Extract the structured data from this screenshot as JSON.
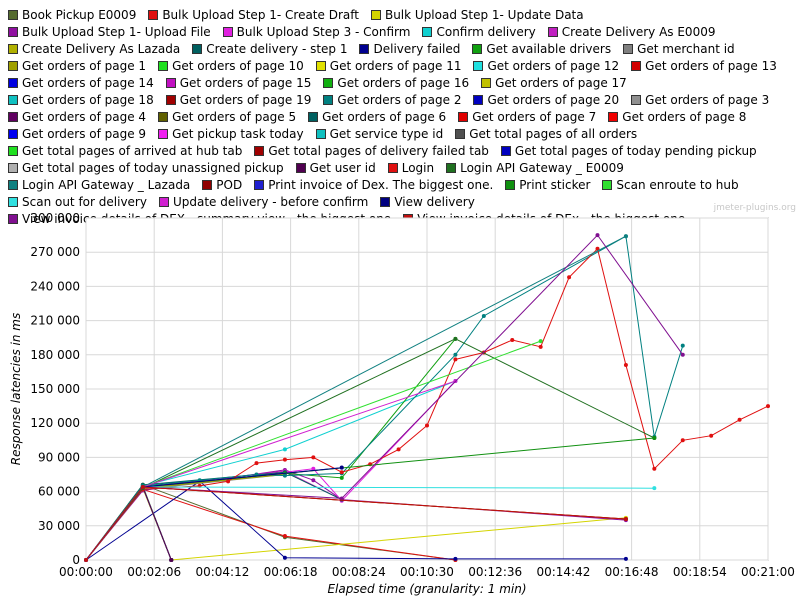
{
  "watermark": "jmeter-plugins.org",
  "chart_data": {
    "type": "line",
    "xlabel": "Elapsed time (granularity: 1 min)",
    "ylabel": "Response latencies in ms",
    "x_ticks": [
      "00:00:00",
      "00:02:06",
      "00:04:12",
      "00:06:18",
      "00:08:24",
      "00:10:30",
      "00:12:36",
      "00:14:42",
      "00:16:48",
      "00:18:54",
      "00:21:00"
    ],
    "y_ticks": [
      "0",
      "30 000",
      "60 000",
      "90 000",
      "120 000",
      "150 000",
      "180 000",
      "210 000",
      "240 000",
      "270 000",
      "300 000"
    ],
    "xlim_seconds": [
      0,
      1260
    ],
    "ylim": [
      0,
      300000
    ],
    "grid": true,
    "legend_position": "top",
    "series": [
      {
        "name": "Book Pickup E0009",
        "color": "#556b2f",
        "points": [
          [
            0,
            0
          ],
          [
            120,
            66000
          ],
          [
            420,
            20000
          ],
          [
            780,
            0
          ]
        ]
      },
      {
        "name": "Bulk Upload Step 1- Create Draft",
        "color": "#e01010",
        "points": [
          [
            0,
            0
          ],
          [
            120,
            62000
          ],
          [
            420,
            21000
          ],
          [
            780,
            0
          ]
        ]
      },
      {
        "name": "Bulk Upload Step 1- Update Data",
        "color": "#d4d400",
        "points": [
          [
            0,
            0
          ],
          [
            120,
            63000
          ],
          [
            180,
            0
          ],
          [
            1140,
            37000
          ]
        ]
      },
      {
        "name": "Bulk Upload Step 1- Upload File",
        "color": "#9010a0",
        "points": [
          [
            0,
            0
          ],
          [
            120,
            61000
          ],
          [
            420,
            79000
          ],
          [
            480,
            70000
          ],
          [
            540,
            53000
          ],
          [
            1140,
            35000
          ]
        ]
      },
      {
        "name": "Bulk Upload Step 3 - Confirm",
        "color": "#e020e0",
        "points": [
          [
            0,
            0
          ],
          [
            120,
            63000
          ],
          [
            300,
            71000
          ],
          [
            480,
            80000
          ],
          [
            540,
            52000
          ],
          [
            780,
            157000
          ]
        ]
      },
      {
        "name": "Confirm delivery",
        "color": "#10d0d0",
        "points": [
          [
            0,
            0
          ],
          [
            120,
            65000
          ],
          [
            420,
            97000
          ],
          [
            780,
            157000
          ]
        ]
      },
      {
        "name": "Create Delivery As E0009",
        "color": "#c020c0",
        "points": [
          [
            0,
            0
          ],
          [
            120,
            64000
          ],
          [
            420,
            78000
          ],
          [
            540,
            53000
          ]
        ]
      },
      {
        "name": "Create Delivery As Lazada",
        "color": "#b0b000",
        "points": [
          [
            0,
            0
          ],
          [
            120,
            64000
          ],
          [
            1140,
            36000
          ]
        ]
      },
      {
        "name": "Create delivery - step 1",
        "color": "#006060",
        "points": [
          [
            0,
            0
          ],
          [
            120,
            66000
          ],
          [
            420,
            77000
          ],
          [
            540,
            53000
          ]
        ]
      },
      {
        "name": "Delivery failed",
        "color": "#000090",
        "points": [
          [
            0,
            0
          ],
          [
            240,
            69000
          ],
          [
            420,
            2000
          ],
          [
            780,
            1000
          ],
          [
            1140,
            1000
          ]
        ]
      },
      {
        "name": "Get available drivers",
        "color": "#10a010",
        "points": [
          [
            0,
            0
          ],
          [
            120,
            63000
          ],
          [
            420,
            76000
          ],
          [
            540,
            72000
          ],
          [
            780,
            194000
          ]
        ]
      },
      {
        "name": "Get merchant id",
        "color": "#808080",
        "points": [
          [
            0,
            0
          ],
          [
            120,
            62000
          ],
          [
            420,
            75000
          ]
        ]
      },
      {
        "name": "Get orders of page 1",
        "color": "#a0a000",
        "points": [
          [
            0,
            0
          ],
          [
            120,
            63000
          ],
          [
            420,
            75000
          ]
        ]
      },
      {
        "name": "Get orders of page 10",
        "color": "#20e020",
        "points": [
          [
            0,
            0
          ],
          [
            120,
            65000
          ],
          [
            180,
            0
          ]
        ]
      },
      {
        "name": "Get orders of page 11",
        "color": "#e0e000",
        "points": [
          [
            0,
            0
          ],
          [
            120,
            63000
          ],
          [
            180,
            0
          ]
        ]
      },
      {
        "name": "Get orders of page 12",
        "color": "#20e0e0",
        "points": [
          [
            0,
            0
          ],
          [
            120,
            64000
          ],
          [
            180,
            0
          ]
        ]
      },
      {
        "name": "Get orders of page 13",
        "color": "#d00000",
        "points": [
          [
            0,
            0
          ],
          [
            120,
            64000
          ],
          [
            180,
            0
          ]
        ]
      },
      {
        "name": "Get orders of page 14",
        "color": "#0000e0",
        "points": [
          [
            0,
            0
          ],
          [
            120,
            64000
          ],
          [
            180,
            0
          ]
        ]
      },
      {
        "name": "Get orders of page 15",
        "color": "#c010c0",
        "points": [
          [
            0,
            0
          ],
          [
            120,
            64000
          ],
          [
            180,
            0
          ]
        ]
      },
      {
        "name": "Get orders of page 16",
        "color": "#10b010",
        "points": [
          [
            0,
            0
          ],
          [
            120,
            64000
          ],
          [
            180,
            0
          ]
        ]
      },
      {
        "name": "Get orders of page 17",
        "color": "#c0c000",
        "points": [
          [
            0,
            0
          ],
          [
            120,
            64000
          ],
          [
            180,
            0
          ]
        ]
      },
      {
        "name": "Get orders of page 18",
        "color": "#10c0c0",
        "points": [
          [
            0,
            0
          ],
          [
            120,
            64000
          ],
          [
            180,
            0
          ]
        ]
      },
      {
        "name": "Get orders of page 19",
        "color": "#a00000",
        "points": [
          [
            0,
            0
          ],
          [
            120,
            64000
          ],
          [
            180,
            0
          ]
        ]
      },
      {
        "name": "Get orders of page 2",
        "color": "#008080",
        "points": [
          [
            0,
            0
          ],
          [
            120,
            65000
          ],
          [
            240,
            70000
          ],
          [
            360,
            75000
          ],
          [
            420,
            74000
          ],
          [
            540,
            76000
          ],
          [
            780,
            180000
          ],
          [
            840,
            214000
          ],
          [
            1140,
            284000
          ],
          [
            1200,
            108000
          ],
          [
            1260,
            188000
          ]
        ]
      },
      {
        "name": "Get orders of page 20",
        "color": "#0000c0",
        "points": [
          [
            0,
            0
          ],
          [
            120,
            64000
          ],
          [
            180,
            0
          ]
        ]
      },
      {
        "name": "Get orders of page 3",
        "color": "#909090",
        "points": [
          [
            0,
            0
          ],
          [
            120,
            64000
          ],
          [
            180,
            0
          ]
        ]
      },
      {
        "name": "Get orders of page 4",
        "color": "#600060",
        "points": [
          [
            0,
            0
          ],
          [
            120,
            64000
          ],
          [
            180,
            0
          ]
        ]
      },
      {
        "name": "Get orders of page 5",
        "color": "#606000",
        "points": [
          [
            0,
            0
          ],
          [
            120,
            64000
          ],
          [
            180,
            0
          ]
        ]
      },
      {
        "name": "Get orders of page 6",
        "color": "#006060",
        "points": [
          [
            0,
            0
          ],
          [
            120,
            64000
          ],
          [
            180,
            0
          ]
        ]
      },
      {
        "name": "Get orders of page 7",
        "color": "#e00000",
        "points": [
          [
            0,
            0
          ],
          [
            120,
            64000
          ],
          [
            180,
            0
          ]
        ]
      },
      {
        "name": "Get orders of page 8",
        "color": "#f00000",
        "points": [
          [
            0,
            0
          ],
          [
            120,
            64000
          ],
          [
            180,
            0
          ]
        ]
      },
      {
        "name": "Get orders of page 9",
        "color": "#0000f0",
        "points": [
          [
            0,
            0
          ],
          [
            120,
            64000
          ],
          [
            180,
            0
          ]
        ]
      },
      {
        "name": "Get pickup task today",
        "color": "#f020f0",
        "points": [
          [
            0,
            0
          ],
          [
            120,
            64000
          ],
          [
            180,
            0
          ]
        ]
      },
      {
        "name": "Get service type id",
        "color": "#10c0c0",
        "points": [
          [
            0,
            0
          ],
          [
            120,
            64000
          ],
          [
            180,
            0
          ]
        ]
      },
      {
        "name": "Get total pages of all orders",
        "color": "#505050",
        "points": [
          [
            0,
            0
          ],
          [
            120,
            64000
          ],
          [
            180,
            0
          ]
        ]
      },
      {
        "name": "Get total pages of arrived at hub tab",
        "color": "#20e020",
        "points": [
          [
            0,
            0
          ],
          [
            120,
            64000
          ],
          [
            180,
            0
          ]
        ]
      },
      {
        "name": "Get total pages of delivery failed tab",
        "color": "#a00000",
        "points": [
          [
            0,
            0
          ],
          [
            120,
            64000
          ],
          [
            180,
            0
          ]
        ]
      },
      {
        "name": "Get total pages of today pending pickup",
        "color": "#0000c0",
        "points": [
          [
            0,
            0
          ],
          [
            120,
            64000
          ],
          [
            180,
            0
          ]
        ]
      },
      {
        "name": "Get total pages of today unassigned pickup",
        "color": "#b0b0b0",
        "points": [
          [
            0,
            0
          ],
          [
            120,
            64000
          ],
          [
            180,
            0
          ]
        ]
      },
      {
        "name": "Get user id",
        "color": "#500050",
        "points": [
          [
            0,
            0
          ],
          [
            120,
            64000
          ],
          [
            180,
            0
          ]
        ]
      },
      {
        "name": "Login",
        "color": "#e01010",
        "points": [
          [
            0,
            0
          ],
          [
            120,
            62000
          ],
          [
            240,
            65000
          ],
          [
            300,
            69000
          ],
          [
            360,
            85000
          ],
          [
            420,
            88000
          ],
          [
            480,
            90000
          ],
          [
            540,
            77000
          ],
          [
            600,
            84000
          ],
          [
            660,
            97000
          ],
          [
            720,
            118000
          ],
          [
            780,
            176000
          ],
          [
            840,
            182000
          ],
          [
            900,
            193000
          ],
          [
            960,
            187000
          ],
          [
            1020,
            248000
          ],
          [
            1080,
            273000
          ],
          [
            1140,
            171000
          ],
          [
            1200,
            80000
          ],
          [
            1260,
            105000
          ],
          [
            1320,
            109000
          ],
          [
            1380,
            123000
          ],
          [
            1440,
            135000
          ]
        ]
      },
      {
        "name": "Login API Gateway _ E0009",
        "color": "#207020",
        "points": [
          [
            0,
            0
          ],
          [
            120,
            63000
          ],
          [
            780,
            194000
          ],
          [
            1200,
            107000
          ]
        ]
      },
      {
        "name": "Login API Gateway _ Lazada",
        "color": "#108080",
        "points": [
          [
            0,
            0
          ],
          [
            120,
            64000
          ],
          [
            1140,
            284000
          ]
        ]
      },
      {
        "name": "POD",
        "color": "#900000",
        "points": [
          [
            0,
            0
          ],
          [
            120,
            64000
          ],
          [
            1140,
            36000
          ]
        ]
      },
      {
        "name": "Print invoice of Dex. The biggest one.",
        "color": "#2020d0",
        "points": [
          [
            0,
            0
          ],
          [
            120,
            64000
          ],
          [
            540,
            81000
          ]
        ]
      },
      {
        "name": "Print sticker",
        "color": "#109010",
        "points": [
          [
            0,
            0
          ],
          [
            120,
            64000
          ],
          [
            1200,
            107000
          ]
        ]
      },
      {
        "name": "Scan enroute to hub",
        "color": "#30e030",
        "points": [
          [
            0,
            0
          ],
          [
            120,
            64000
          ],
          [
            960,
            192000
          ]
        ]
      },
      {
        "name": "Scan out for delivery",
        "color": "#30e0e0",
        "points": [
          [
            0,
            0
          ],
          [
            120,
            64000
          ],
          [
            1200,
            63000
          ]
        ]
      },
      {
        "name": "Update delivery - before confirm",
        "color": "#d020d0",
        "points": [
          [
            0,
            0
          ],
          [
            120,
            64000
          ],
          [
            780,
            157000
          ]
        ]
      },
      {
        "name": "View delivery",
        "color": "#000080",
        "points": [
          [
            0,
            0
          ],
          [
            120,
            64000
          ],
          [
            540,
            81000
          ]
        ]
      },
      {
        "name": "View invoice details of DEX - summary view - the biggest one",
        "color": "#801090",
        "points": [
          [
            0,
            0
          ],
          [
            120,
            64000
          ],
          [
            540,
            54000
          ],
          [
            1080,
            285000
          ],
          [
            1260,
            180000
          ]
        ]
      },
      {
        "name": "View invoice details of DEx - the biggest one",
        "color": "#c01010",
        "points": [
          [
            0,
            0
          ],
          [
            120,
            64000
          ],
          [
            1140,
            36000
          ]
        ]
      }
    ]
  }
}
